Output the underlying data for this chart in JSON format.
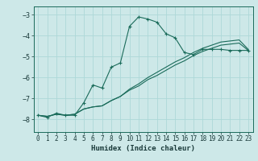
{
  "xlabel": "Humidex (Indice chaleur)",
  "xlim": [
    -0.5,
    23.5
  ],
  "ylim": [
    -8.6,
    -2.6
  ],
  "xticks": [
    0,
    1,
    2,
    3,
    4,
    5,
    6,
    7,
    8,
    9,
    10,
    11,
    12,
    13,
    14,
    15,
    16,
    17,
    18,
    19,
    20,
    21,
    22,
    23
  ],
  "yticks": [
    -8,
    -7,
    -6,
    -5,
    -4,
    -3
  ],
  "bg_color": "#cde8e8",
  "line_color": "#1a6b5a",
  "grid_color": "#add8d8",
  "line1_x": [
    0,
    1,
    2,
    3,
    4,
    5,
    6,
    7,
    8,
    9,
    10,
    11,
    12,
    13,
    14,
    15,
    16,
    17,
    18,
    19,
    20,
    21,
    22,
    23
  ],
  "line1_y": [
    -7.8,
    -7.9,
    -7.7,
    -7.8,
    -7.8,
    -7.2,
    -6.35,
    -6.5,
    -5.5,
    -5.3,
    -3.55,
    -3.1,
    -3.2,
    -3.35,
    -3.9,
    -4.1,
    -4.8,
    -4.9,
    -4.65,
    -4.65,
    -4.65,
    -4.7,
    -4.7,
    -4.7
  ],
  "line2_x": [
    0,
    1,
    2,
    3,
    4,
    5,
    6,
    7,
    8,
    9,
    10,
    11,
    12,
    13,
    14,
    15,
    16,
    17,
    18,
    19,
    20,
    21,
    22,
    23
  ],
  "line2_y": [
    -7.8,
    -7.85,
    -7.75,
    -7.8,
    -7.75,
    -7.5,
    -7.4,
    -7.35,
    -7.1,
    -6.9,
    -6.6,
    -6.4,
    -6.1,
    -5.9,
    -5.65,
    -5.4,
    -5.2,
    -4.95,
    -4.75,
    -4.6,
    -4.45,
    -4.4,
    -4.35,
    -4.7
  ],
  "line3_x": [
    0,
    1,
    2,
    3,
    4,
    5,
    6,
    7,
    8,
    9,
    10,
    11,
    12,
    13,
    14,
    15,
    16,
    17,
    18,
    19,
    20,
    21,
    22,
    23
  ],
  "line3_y": [
    -7.8,
    -7.85,
    -7.75,
    -7.8,
    -7.75,
    -7.5,
    -7.4,
    -7.35,
    -7.1,
    -6.9,
    -6.55,
    -6.3,
    -6.0,
    -5.75,
    -5.5,
    -5.25,
    -5.05,
    -4.8,
    -4.6,
    -4.45,
    -4.3,
    -4.25,
    -4.2,
    -4.65
  ]
}
